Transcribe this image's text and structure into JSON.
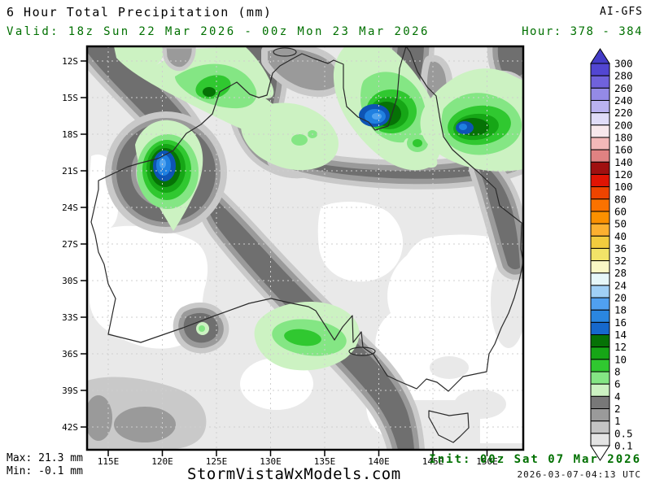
{
  "header": {
    "title": "6 Hour Total Precipitation (mm)",
    "model": "AI-GFS",
    "valid": "Valid: 18z Sun 22 Mar 2026 - 00z Mon 23 Mar 2026",
    "hour": "Hour: 378 - 384"
  },
  "footer": {
    "max": "Max: 21.3 mm",
    "min": "Min: -0.1 mm",
    "watermark": "StormVistaWxModels.com",
    "init": "Init: 00z Sat 07 Mar 2026",
    "generated": "2026-03-07-04:13 UTC"
  },
  "colors": {
    "annotation_green": "#007000",
    "frame_black": "#000000"
  },
  "map": {
    "lat_labels": [
      "12S",
      "15S",
      "18S",
      "21S",
      "24S",
      "27S",
      "30S",
      "33S",
      "36S",
      "39S",
      "42S"
    ],
    "lon_labels": [
      "115E",
      "120E",
      "125E",
      "130E",
      "135E",
      "140E",
      "145E",
      "150E"
    ]
  },
  "colorbar": {
    "unit": "mm",
    "values": [
      "300",
      "280",
      "260",
      "240",
      "220",
      "200",
      "180",
      "160",
      "140",
      "120",
      "100",
      "80",
      "60",
      "50",
      "40",
      "36",
      "32",
      "28",
      "24",
      "20",
      "18",
      "16",
      "14",
      "12",
      "10",
      "8",
      "6",
      "4",
      "2",
      "1",
      "0.5",
      "0.1"
    ],
    "box_colors": [
      "#5246d2",
      "#7062dc",
      "#948ae6",
      "#bab2f0",
      "#e0dcf8",
      "#f8e8ec",
      "#f4b8b8",
      "#e08282",
      "#a01010",
      "#e01404",
      "#ee4400",
      "#fa7200",
      "#fb9000",
      "#fcb030",
      "#f2cc3e",
      "#f2e468",
      "#faf8c4",
      "#e6f7f9",
      "#a0d0f6",
      "#50a0f0",
      "#2a86e0",
      "#1668cc",
      "#067206",
      "#16a616",
      "#30c830",
      "#84e684",
      "#ccf2c2",
      "#787878",
      "#9a9a9a",
      "#c4c4c4",
      "#e4e4e4"
    ],
    "top_arrow_color": "#443cc8",
    "bottom_arrow_color": "#ffffff"
  }
}
